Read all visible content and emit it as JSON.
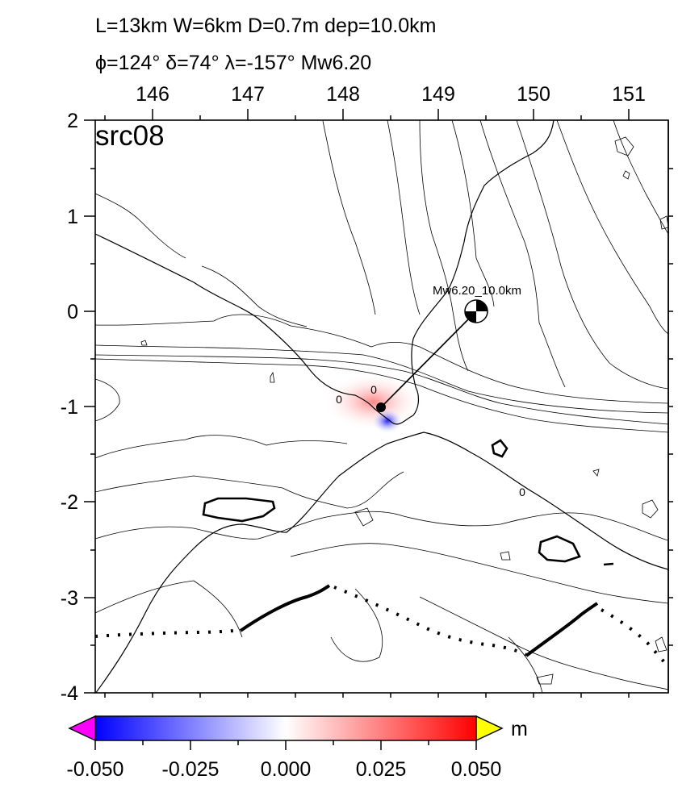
{
  "header": {
    "line1": "L=13km W=6km D=0.7m dep=10.0km",
    "line2": "ϕ=124° δ=74° λ=-157° Mw6.20"
  },
  "map": {
    "panel_label": "src08",
    "x_ticks": [
      "146",
      "147",
      "148",
      "149",
      "150",
      "151"
    ],
    "y_ticks": [
      "2",
      "1",
      "0",
      "-1",
      "-2",
      "-3",
      "-4"
    ],
    "contour_labels": [
      "0",
      "0",
      "0"
    ],
    "event_label": "Mw6.20_10.0km",
    "colors": {
      "negative": "#0000ff",
      "positive": "#ff0000",
      "underflow": "#ff00ff",
      "overflow": "#ffff00"
    }
  },
  "colorbar": {
    "unit": "m",
    "tick_labels": [
      "-0.050",
      "-0.025",
      "0.000",
      "0.025",
      "0.050"
    ]
  }
}
